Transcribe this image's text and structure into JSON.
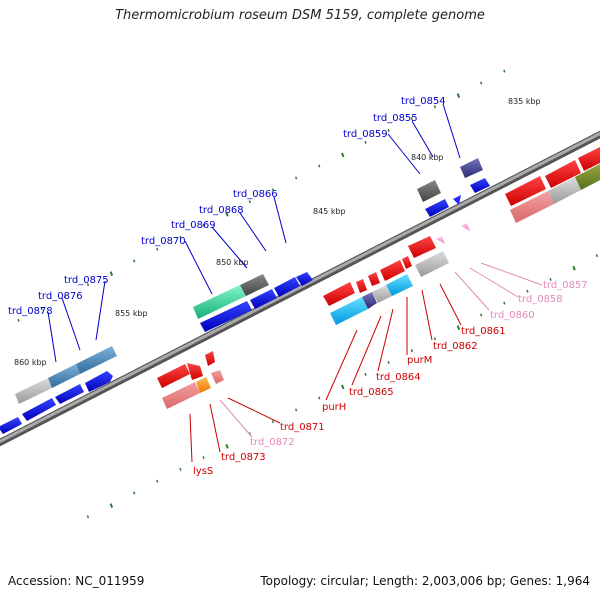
{
  "title": "Thermomicrobium roseum DSM 5159, complete genome",
  "footer": {
    "accession": "Accession: NC_011959",
    "summary": "Topology: circular; Length: 2,003,006 bp; Genes: 1,964"
  },
  "colors": {
    "backbone": "#777777",
    "tick": "#2a7d2a",
    "forward_label": "#0000cc",
    "reverse_label": "#cc0000",
    "pseudo_label": "#e48ab8"
  },
  "kbp_labels": [
    "835 kbp",
    "840 kbp",
    "845 kbp",
    "850 kbp",
    "855 kbp",
    "860 kbp"
  ],
  "gene_labels": [
    "trd_0854",
    "trd_0855",
    "trd_0859",
    "trd_0866",
    "trd_0868",
    "trd_0869",
    "trd_0870",
    "trd_0875",
    "trd_0876",
    "trd_0878",
    "trd_0857",
    "trd_0858",
    "trd_0860",
    "trd_0861",
    "trd_0862",
    "purM",
    "trd_0864",
    "trd_0865",
    "purH",
    "trd_0871",
    "trd_0872",
    "trd_0873",
    "lysS"
  ]
}
